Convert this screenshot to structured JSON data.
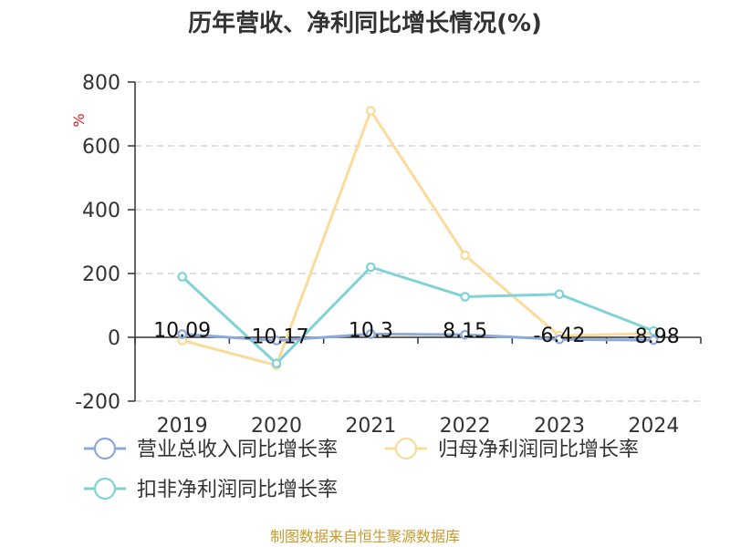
{
  "chart_data": {
    "type": "line",
    "title": "历年营收、净利同比增长情况(%)",
    "ylabel": "%",
    "categories": [
      "2019",
      "2020",
      "2021",
      "2022",
      "2023",
      "2024"
    ],
    "ylim": [
      -200,
      800
    ],
    "yticks": [
      -200,
      0,
      200,
      400,
      600,
      800
    ],
    "grid": true,
    "legend_position": "bottom",
    "series": [
      {
        "name": "营业总收入同比增长率",
        "color": "#8da9d8",
        "values": [
          10.09,
          -10.17,
          10.3,
          8.15,
          -6.42,
          -8.98
        ],
        "labels": [
          "10.09",
          "-10.17",
          "10.3",
          "8.15",
          "-6.42",
          "-8.98"
        ]
      },
      {
        "name": "归母净利润同比增长率",
        "color": "#fadb9a",
        "values": [
          -10,
          -88,
          710,
          257,
          5,
          12
        ],
        "labels": null
      },
      {
        "name": "扣非净利润同比增长率",
        "color": "#7fd2d5",
        "values": [
          190,
          -82,
          220,
          127,
          135,
          20
        ],
        "labels": null
      }
    ],
    "source": "制图数据来自恒生聚源数据库"
  },
  "colors": {
    "title": "#333333",
    "axis": "#333333",
    "grid": "#cccccc",
    "unit": "#e02020",
    "source": "#c89a2a"
  }
}
